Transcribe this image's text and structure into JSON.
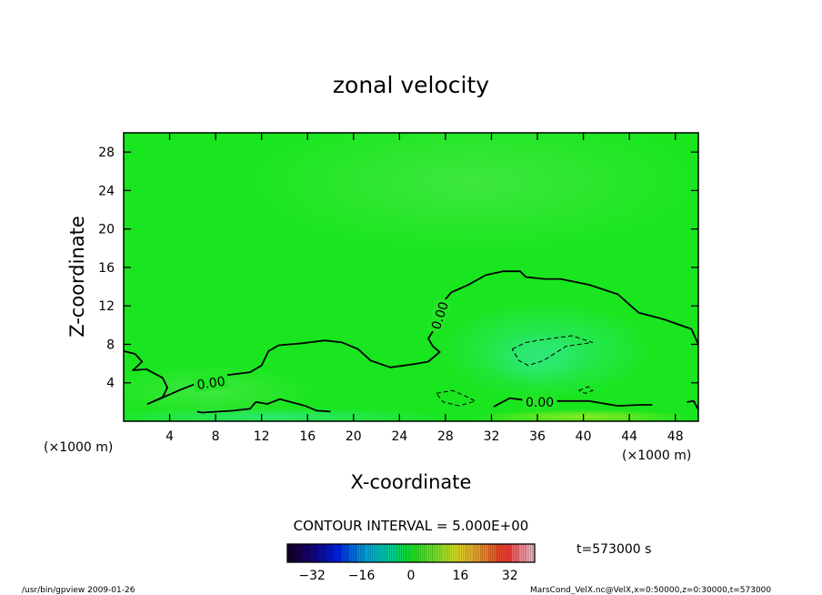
{
  "chart_data": {
    "type": "heatmap",
    "title": "zonal velocity",
    "xlabel": "X-coordinate",
    "ylabel": "Z-coordinate",
    "x_unit": "(×1000 m)",
    "y_unit": "(×1000 m)",
    "xlim": [
      0,
      50
    ],
    "ylim": [
      0,
      30
    ],
    "xticks": [
      4,
      8,
      12,
      16,
      20,
      24,
      28,
      32,
      36,
      40,
      44,
      48
    ],
    "yticks": [
      4,
      8,
      12,
      16,
      20,
      24,
      28
    ],
    "contour_label": "0.00",
    "contour_interval_text": "CONTOUR INTERVAL = 5.000E+00",
    "colorbar": {
      "min": -40,
      "max": 40,
      "ticks": [
        -32,
        -16,
        0,
        16,
        32
      ]
    },
    "time_text": "t=573000 s",
    "contour_zero": [
      [
        [
          0,
          7.3
        ],
        [
          1,
          7.0
        ],
        [
          1.6,
          6.2
        ],
        [
          1,
          5.5
        ],
        [
          0.8,
          5.3
        ],
        [
          2,
          5.4
        ],
        [
          3.4,
          4.5
        ],
        [
          3.8,
          3.5
        ],
        [
          3.4,
          2.5
        ],
        [
          2.1,
          1.8
        ],
        [
          3.3,
          2.4
        ],
        [
          5,
          3.3
        ],
        [
          6.5,
          4.0
        ],
        [
          9,
          4.8
        ],
        [
          11,
          5.1
        ],
        [
          12,
          5.8
        ],
        [
          12.6,
          7.3
        ],
        [
          13.5,
          7.9
        ],
        [
          15.5,
          8.1
        ],
        [
          17.5,
          8.4
        ],
        [
          19,
          8.2
        ],
        [
          20.4,
          7.5
        ],
        [
          21.5,
          6.3
        ],
        [
          23.2,
          5.6
        ],
        [
          25,
          5.9
        ],
        [
          26.5,
          6.2
        ],
        [
          27.5,
          7.2
        ],
        [
          26.9,
          7.8
        ],
        [
          26.5,
          8.6
        ],
        [
          27.5,
          10.5
        ],
        [
          27.8,
          12.4
        ],
        [
          28.5,
          13.4
        ],
        [
          30,
          14.2
        ],
        [
          31.5,
          15.2
        ],
        [
          33,
          15.6
        ],
        [
          34.5,
          15.6
        ],
        [
          35,
          15.0
        ],
        [
          36.6,
          14.8
        ],
        [
          38,
          14.8
        ],
        [
          40.5,
          14.2
        ],
        [
          43,
          13.2
        ],
        [
          44.8,
          11.3
        ],
        [
          47,
          10.6
        ],
        [
          49.4,
          9.6
        ],
        [
          50,
          8.0
        ]
      ],
      [
        [
          6.4,
          1.0
        ],
        [
          6.8,
          0.9
        ],
        [
          9.5,
          1.1
        ],
        [
          11,
          1.3
        ],
        [
          11.5,
          2.0
        ],
        [
          12.5,
          1.8
        ],
        [
          13.6,
          2.3
        ],
        [
          15.8,
          1.6
        ],
        [
          16.8,
          1.1
        ],
        [
          18,
          1.0
        ]
      ],
      [
        [
          32.2,
          1.5
        ],
        [
          33.6,
          2.4
        ],
        [
          35.5,
          2.1
        ],
        [
          38.5,
          2.1
        ],
        [
          40.5,
          2.1
        ],
        [
          43,
          1.6
        ],
        [
          45,
          1.7
        ],
        [
          46,
          1.7
        ]
      ],
      [
        [
          49,
          2.0
        ],
        [
          49.6,
          2.1
        ],
        [
          50,
          1.2
        ]
      ]
    ],
    "contour_neg": [
      [
        [
          33.8,
          7.5
        ],
        [
          35,
          8.2
        ],
        [
          36.5,
          8.5
        ],
        [
          39,
          8.9
        ],
        [
          40.8,
          8.2
        ],
        [
          38.5,
          7.8
        ],
        [
          36.5,
          6.3
        ],
        [
          35.2,
          5.8
        ],
        [
          34.4,
          6.3
        ],
        [
          33.8,
          7.5
        ]
      ],
      [
        [
          27.2,
          2.9
        ],
        [
          28.6,
          3.2
        ],
        [
          29.6,
          2.7
        ],
        [
          30.6,
          2.1
        ],
        [
          29.2,
          1.6
        ],
        [
          27.8,
          2.0
        ],
        [
          27.2,
          2.9
        ]
      ],
      [
        [
          39.6,
          3.2
        ],
        [
          40.4,
          3.6
        ],
        [
          40.8,
          3.2
        ],
        [
          40.2,
          2.9
        ],
        [
          39.6,
          3.2
        ]
      ]
    ]
  },
  "footer": {
    "program": "/usr/bin/gpview   2009-01-26",
    "source": "MarsCond_VelX.nc@VelX,x=0:50000,z=0:30000,t=573000"
  }
}
